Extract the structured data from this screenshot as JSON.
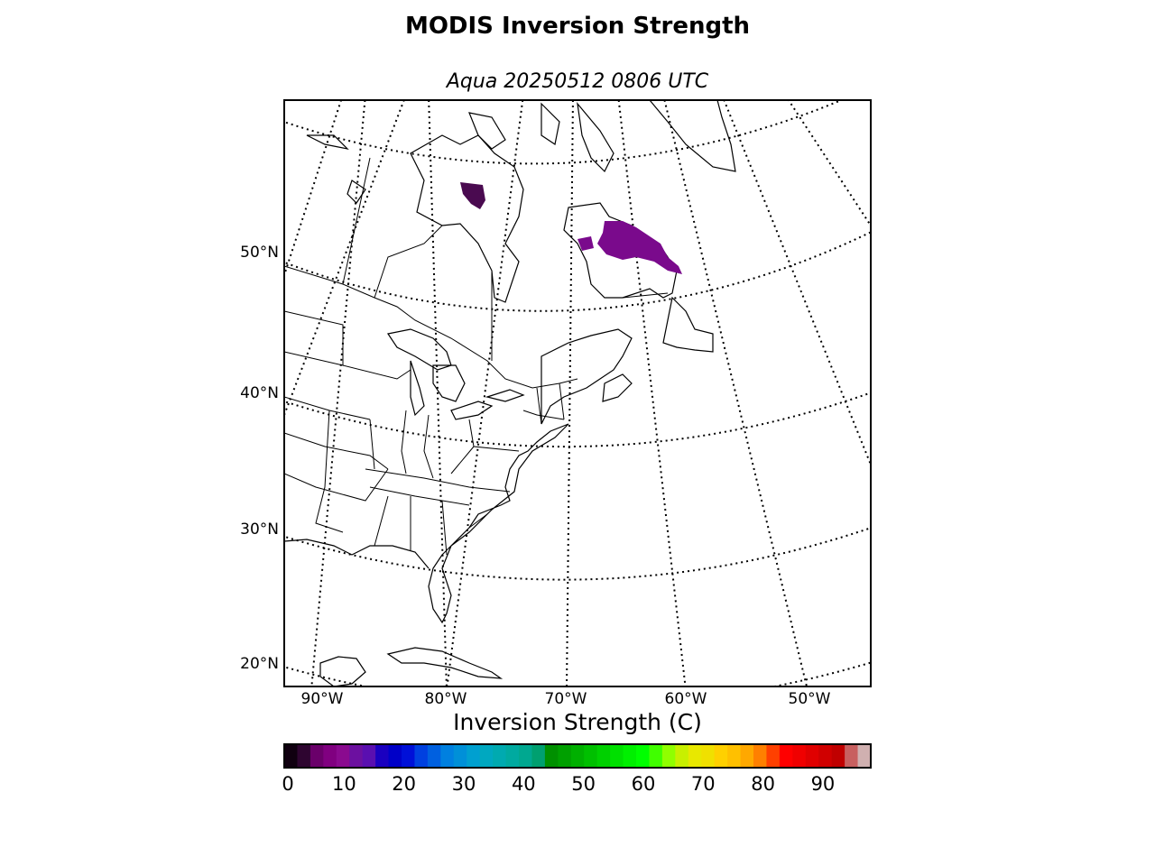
{
  "title": "MODIS Inversion Strength",
  "subtitle": "Aqua 20250512 0806 UTC",
  "map": {
    "projection": "lambert-conformal",
    "lat_labels": [
      "50°N",
      "40°N",
      "30°N",
      "20°N"
    ],
    "lon_labels": [
      "90°W",
      "80°W",
      "70°W",
      "60°W",
      "50°W"
    ],
    "graticule_style": "dotted",
    "coastline_color": "#000000",
    "data_color": "#7a0a8c",
    "data_regions": [
      "Hudson Bay area (near 80°W, 57°N)",
      "Labrador / northern Quebec (60–68°W, 52–55°N)"
    ]
  },
  "colorbar": {
    "label": "Inversion Strength (C)",
    "ticks": [
      "0",
      "10",
      "20",
      "30",
      "40",
      "50",
      "60",
      "70",
      "80",
      "90"
    ],
    "range": [
      0,
      98
    ],
    "colors": [
      "#100010",
      "#2e0530",
      "#6a006a",
      "#800080",
      "#8a0a8f",
      "#6c10a0",
      "#5a0fb0",
      "#1a00c0",
      "#0000c8",
      "#0010d8",
      "#0040e0",
      "#0060e0",
      "#0080e0",
      "#0090d8",
      "#00a0d0",
      "#00a8c0",
      "#00aab0",
      "#00aaa0",
      "#00a890",
      "#00a070",
      "#009000",
      "#00a000",
      "#00b000",
      "#00c000",
      "#00d000",
      "#00e000",
      "#00f000",
      "#00ff00",
      "#40ff00",
      "#90ff00",
      "#c8f000",
      "#e8e800",
      "#f0e000",
      "#ffd000",
      "#ffc000",
      "#ffa800",
      "#ff8000",
      "#ff4000",
      "#ff0000",
      "#f00000",
      "#e00000",
      "#d00000",
      "#c00000",
      "#c86060",
      "#d0b0b0"
    ]
  }
}
